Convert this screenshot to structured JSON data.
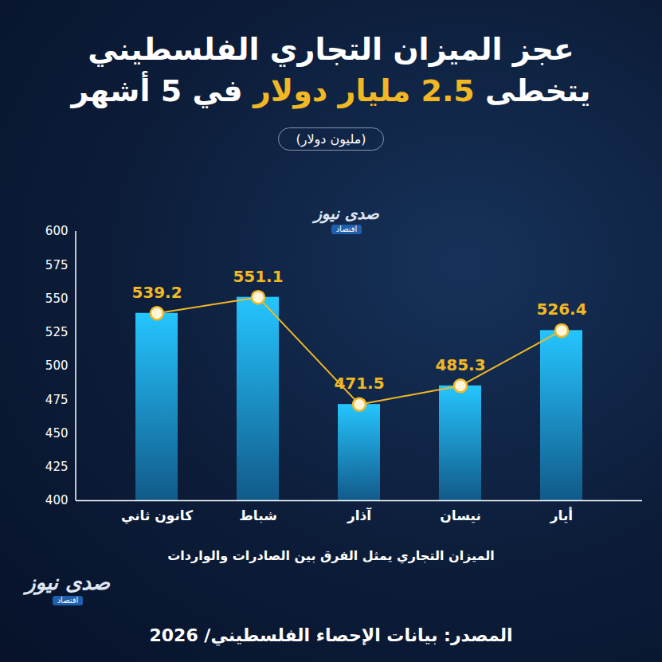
{
  "chart_data": {
    "type": "bar",
    "title": [
      "عجز الميزان التجاري الفلسطيني",
      "يتخطى 2.5 مليار دولار في 5 أشهر"
    ],
    "subtitle": "(مليون دولار)",
    "categories": [
      "كانون ثاني",
      "شباط",
      "آذار",
      "نيسان",
      "أيار"
    ],
    "series": [
      {
        "type": "bar",
        "color": "#1e9ff2",
        "values": [
          539.2,
          551.1,
          471.5,
          485.3,
          526.4
        ]
      },
      {
        "type": "line",
        "color": "#f2b824",
        "marker": "circle",
        "values": [
          539.2,
          551.1,
          471.5,
          485.3,
          526.4
        ]
      }
    ],
    "ylim": [
      400,
      600
    ],
    "yticks": [
      400,
      425,
      450,
      475,
      500,
      525,
      550,
      575,
      600
    ],
    "grid": false,
    "data_labels": true,
    "annotations": [
      "الميزان التجاري يمثل الفرق بين الصادرات والواردات",
      "المصدر: بيانات الإحصاء الفلسطيني/ 2026"
    ],
    "logo": {
      "name": "صدى نيوز",
      "section": "اقتصاد"
    }
  }
}
